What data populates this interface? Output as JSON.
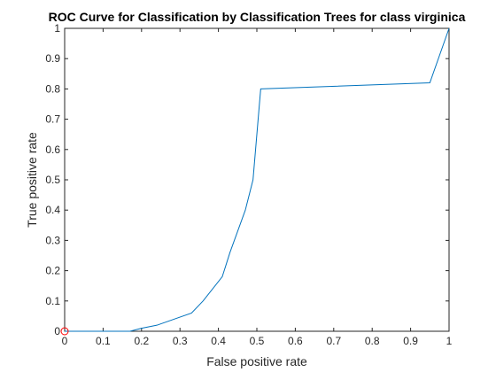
{
  "chart_data": {
    "type": "line",
    "title": "ROC Curve for Classification by Classification Trees for class virginica",
    "xlabel": "False positive rate",
    "ylabel": "True positive rate",
    "xlim": [
      0,
      1
    ],
    "ylim": [
      0,
      1
    ],
    "xticks": [
      0,
      0.1,
      0.2,
      0.3,
      0.4,
      0.5,
      0.6,
      0.7,
      0.8,
      0.9,
      1
    ],
    "yticks": [
      0,
      0.1,
      0.2,
      0.3,
      0.4,
      0.5,
      0.6,
      0.7,
      0.8,
      0.9,
      1
    ],
    "xtick_labels": [
      "0",
      "0.1",
      "0.2",
      "0.3",
      "0.4",
      "0.5",
      "0.6",
      "0.7",
      "0.8",
      "0.9",
      "1"
    ],
    "ytick_labels": [
      "0",
      "0.1",
      "0.2",
      "0.3",
      "0.4",
      "0.5",
      "0.6",
      "0.7",
      "0.8",
      "0.9",
      "1"
    ],
    "grid": false,
    "series": [
      {
        "x": [
          0,
          0.17,
          0.2,
          0.24,
          0.33,
          0.36,
          0.41,
          0.43,
          0.47,
          0.49,
          0.51,
          0.95,
          1
        ],
        "y": [
          0,
          0,
          0.01,
          0.02,
          0.06,
          0.1,
          0.18,
          0.26,
          0.4,
          0.5,
          0.8,
          0.82,
          1
        ],
        "color": "#0072BD"
      }
    ],
    "markers": [
      {
        "x": 0,
        "y": 0,
        "color": "#FF0000",
        "shape": "open-circle"
      }
    ]
  }
}
